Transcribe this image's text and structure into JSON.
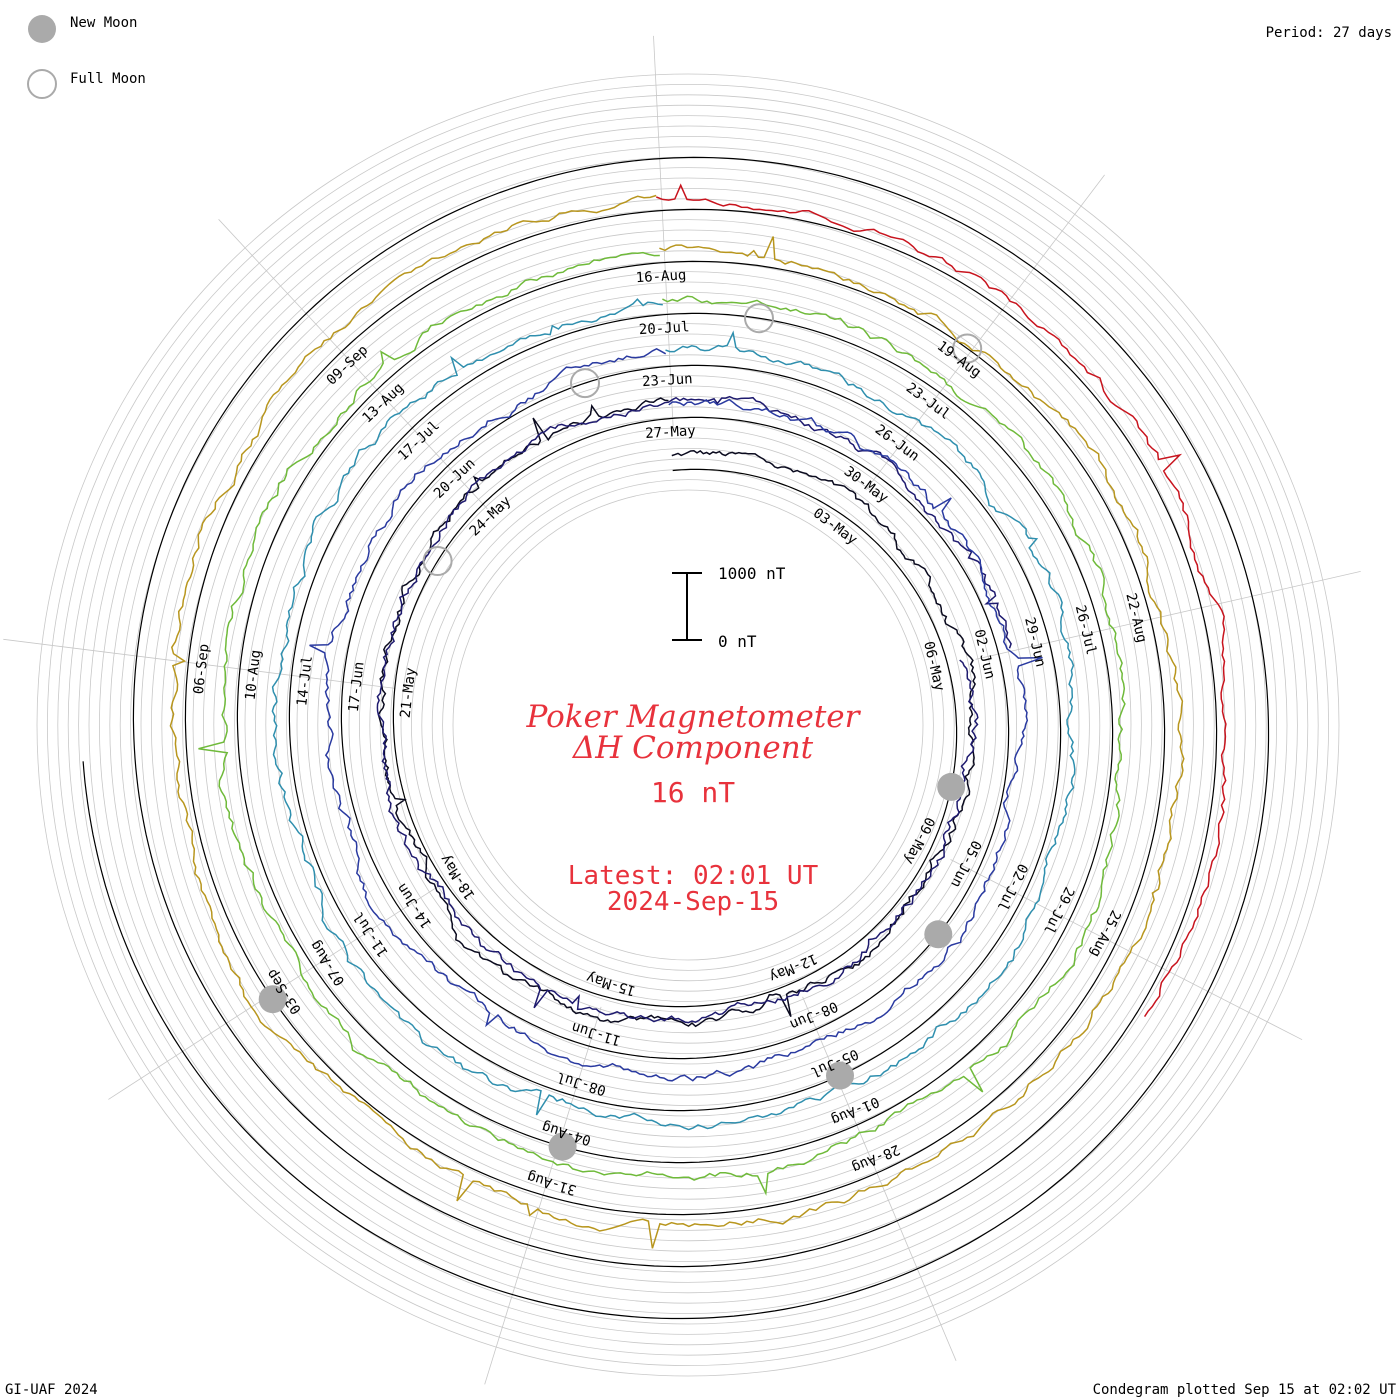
{
  "legend": {
    "new_moon_label": "New Moon",
    "full_moon_label": "Full Moon",
    "new_moon_color": "#aaaaaa",
    "full_moon_color": "#aaaaaa"
  },
  "period_label": "Period: 27 days",
  "footer": {
    "left": "GI-UAF 2024",
    "right": "Condegram plotted Sep 15 at 02:02 UT"
  },
  "title": {
    "line1": "Poker Magnetometer",
    "line2": "ΔH Component",
    "value": "16 nT",
    "latest_line1": "Latest: 02:01 UT",
    "latest_line2": "2024-Sep-15"
  },
  "scale_bar": {
    "top_label": "1000 nT",
    "bottom_label": "0 nT"
  },
  "chart_data": {
    "type": "line",
    "period_days": 27,
    "scale_nT": [
      0,
      1000
    ],
    "series": [
      {
        "rotation": 1,
        "start": "2024-Apr-30",
        "color": "#0a0a1e",
        "date_labels": [
          "03-May",
          "06-May"
        ]
      },
      {
        "rotation": 2,
        "start": "2024-May-06",
        "color": "#1e1a6e",
        "date_labels": [
          "09-May",
          "12-May",
          "15-May",
          "18-May",
          "21-May",
          "24-May",
          "27-May"
        ]
      },
      {
        "rotation": 3,
        "start": "2024-May-27",
        "color": "#2a3aa0",
        "date_labels": [
          "30-May",
          "02-Jun",
          "05-Jun",
          "08-Jun",
          "11-Jun",
          "14-Jun",
          "17-Jun",
          "20-Jun",
          "23-Jun"
        ]
      },
      {
        "rotation": 4,
        "start": "2024-Jun-23",
        "color": "#2f8fae",
        "date_labels": [
          "26-Jun",
          "29-Jun",
          "02-Jul",
          "05-Jul",
          "08-Jul",
          "11-Jul",
          "14-Jul",
          "17-Jul",
          "20-Jul"
        ]
      },
      {
        "rotation": 5,
        "start": "2024-Jul-20",
        "color": "#6fba3a",
        "date_labels": [
          "23-Jul",
          "26-Jul",
          "29-Jul",
          "01-Aug",
          "04-Aug",
          "07-Aug",
          "10-Aug",
          "13-Aug",
          "16-Aug"
        ]
      },
      {
        "rotation": 6,
        "start": "2024-Aug-16",
        "color": "#b8961e",
        "date_labels": [
          "19-Aug",
          "22-Aug",
          "25-Aug",
          "28-Aug",
          "31-Aug",
          "03-Sep",
          "06-Sep",
          "09-Sep"
        ]
      },
      {
        "rotation": 7,
        "start": "2024-Sep-12",
        "color": "#c8141e",
        "date_labels": []
      }
    ],
    "new_moons": [
      "2024-May-08",
      "2024-Jun-06",
      "2024-Jul-05",
      "2024-Aug-04",
      "2024-Sep-03"
    ],
    "full_moons": [
      "2024-May-23",
      "2024-Jun-22",
      "2024-Jul-21",
      "2024-Aug-19"
    ]
  }
}
